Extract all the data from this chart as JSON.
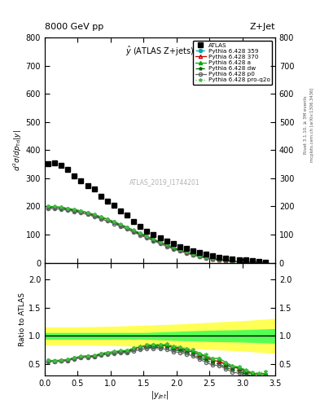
{
  "title_top": "8000 GeV pp",
  "title_right": "Z+Jet",
  "plot_title": "$\\hat{y}$ (ATLAS Z+jets)",
  "ylabel_main": "$d^2\\sigma/dp_{\\mathrm{Td}}|y|$",
  "ylabel_ratio": "Ratio to ATLAS",
  "xlabel": "$|y_{jet}|$",
  "watermark": "ATLAS_2019_I1744201",
  "right_label": "Rivet 3.1.10, ≥ 3M events",
  "right_label2": "mcplots.cern.ch [arXiv:1306.3436]",
  "atlas_x": [
    0.05,
    0.15,
    0.25,
    0.35,
    0.45,
    0.55,
    0.65,
    0.75,
    0.85,
    0.95,
    1.05,
    1.15,
    1.25,
    1.35,
    1.45,
    1.55,
    1.65,
    1.75,
    1.85,
    1.95,
    2.05,
    2.15,
    2.25,
    2.35,
    2.45,
    2.55,
    2.65,
    2.75,
    2.85,
    2.95,
    3.05,
    3.15,
    3.25,
    3.35
  ],
  "atlas_y": [
    352,
    355,
    345,
    332,
    308,
    290,
    275,
    263,
    237,
    220,
    203,
    185,
    170,
    147,
    130,
    113,
    100,
    88,
    76,
    68,
    58,
    50,
    42,
    36,
    30,
    25,
    20,
    17,
    14,
    11,
    9,
    7,
    5,
    3
  ],
  "py_x": [
    0.05,
    0.15,
    0.25,
    0.35,
    0.45,
    0.55,
    0.65,
    0.75,
    0.85,
    0.95,
    1.05,
    1.15,
    1.25,
    1.35,
    1.45,
    1.55,
    1.65,
    1.75,
    1.85,
    1.95,
    2.05,
    2.15,
    2.25,
    2.35,
    2.45,
    2.55,
    2.65,
    2.75,
    2.85,
    2.95,
    3.05,
    3.15,
    3.25,
    3.35
  ],
  "py359_y": [
    197,
    196,
    194,
    190,
    186,
    181,
    175,
    168,
    160,
    152,
    143,
    133,
    123,
    112,
    102,
    91,
    81,
    71,
    61,
    52,
    44,
    36,
    29,
    23,
    18,
    14,
    11,
    8,
    6,
    4.5,
    3.2,
    2.2,
    1.5,
    0.9
  ],
  "py370_y": [
    199,
    198,
    196,
    192,
    188,
    183,
    177,
    170,
    162,
    154,
    145,
    135,
    125,
    114,
    104,
    93,
    83,
    73,
    63,
    54,
    45,
    37,
    30,
    24,
    19,
    14,
    11,
    8.5,
    6.2,
    4.7,
    3.4,
    2.3,
    1.6,
    1.0
  ],
  "pya_y": [
    200,
    199,
    197,
    193,
    189,
    184,
    178,
    171,
    163,
    155,
    146,
    136,
    126,
    115,
    105,
    94,
    84,
    74,
    64,
    55,
    46,
    38,
    31,
    25,
    19,
    15,
    12,
    9,
    6.5,
    4.9,
    3.5,
    2.4,
    1.6,
    1.0
  ],
  "pydw_y": [
    196,
    195,
    193,
    189,
    185,
    180,
    174,
    167,
    159,
    151,
    142,
    132,
    122,
    111,
    101,
    90,
    80,
    70,
    60,
    51,
    43,
    35,
    28,
    22,
    17,
    13,
    10,
    7.5,
    5.5,
    4.1,
    2.9,
    2.0,
    1.3,
    0.8
  ],
  "pyp0_y": [
    193,
    192,
    190,
    186,
    182,
    177,
    171,
    164,
    156,
    148,
    139,
    129,
    119,
    108,
    98,
    88,
    78,
    68,
    58,
    49,
    41,
    34,
    27,
    21,
    16,
    12,
    9.5,
    7,
    5,
    3.7,
    2.6,
    1.8,
    1.2,
    0.7
  ],
  "pyproq2o_y": [
    201,
    200,
    198,
    194,
    190,
    185,
    179,
    172,
    164,
    156,
    147,
    137,
    127,
    116,
    106,
    95,
    85,
    75,
    65,
    56,
    47,
    39,
    32,
    25,
    20,
    15,
    12,
    9,
    6.5,
    5.0,
    3.6,
    2.5,
    1.7,
    1.1
  ],
  "band_x": [
    0.0,
    0.5,
    1.0,
    1.5,
    2.0,
    2.5,
    3.0,
    3.5
  ],
  "band_green_low": [
    0.95,
    0.95,
    0.95,
    0.95,
    0.93,
    0.91,
    0.9,
    0.88
  ],
  "band_green_high": [
    1.05,
    1.05,
    1.05,
    1.05,
    1.07,
    1.09,
    1.1,
    1.12
  ],
  "band_yellow_low": [
    0.85,
    0.85,
    0.84,
    0.82,
    0.8,
    0.77,
    0.74,
    0.7
  ],
  "band_yellow_high": [
    1.15,
    1.15,
    1.16,
    1.18,
    1.2,
    1.23,
    1.26,
    1.3
  ],
  "color_atlas": "#000000",
  "color_359": "#00AAAA",
  "color_370": "#CC0000",
  "color_a": "#00AA00",
  "color_dw": "#006600",
  "color_p0": "#666666",
  "color_proq2o": "#44BB44",
  "ylim_main": [
    0,
    800
  ],
  "ylim_ratio": [
    0.3,
    2.3
  ],
  "xlim": [
    0.0,
    3.5
  ],
  "yticks_main": [
    0,
    100,
    200,
    300,
    400,
    500,
    600,
    700,
    800
  ],
  "yticks_ratio": [
    0.5,
    1.0,
    1.5,
    2.0
  ],
  "xticks": [
    0,
    0.5,
    1.0,
    1.5,
    2.0,
    2.5,
    3.0,
    3.5
  ]
}
